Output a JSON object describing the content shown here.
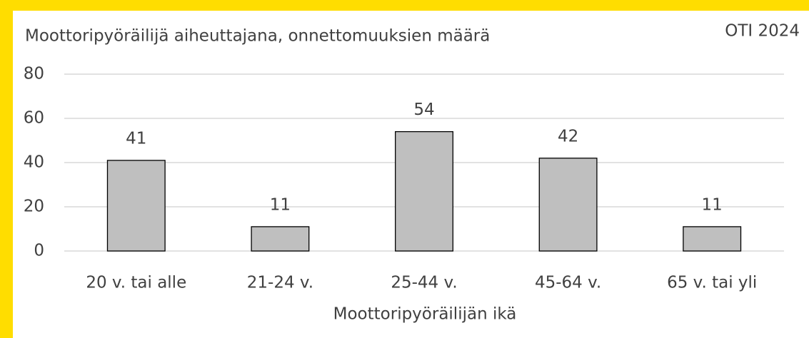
{
  "chart_data": {
    "type": "bar",
    "title": "Moottoripyöräilijä aiheuttajana, onnettomuuksien määrä",
    "source": "OTI 2024",
    "xlabel": "Moottoripyöräilijän ikä",
    "categories": [
      "20 v. tai alle",
      "21-24 v.",
      "25-44 v.",
      "45-64 v.",
      "65 v. tai yli"
    ],
    "values": [
      41,
      11,
      54,
      42,
      11
    ],
    "color": "#bfbfbf",
    "ylim": [
      0,
      80
    ],
    "yticks": [
      0,
      20,
      40,
      60,
      80
    ],
    "grid": true
  }
}
